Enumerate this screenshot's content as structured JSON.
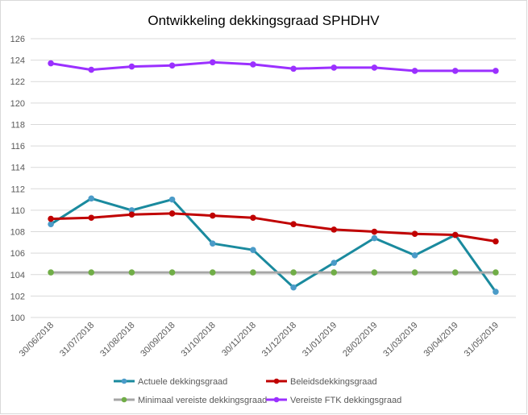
{
  "chart_data": {
    "type": "line",
    "title": "Ontwikkeling dekkingsgraad SPHDHV",
    "xlabel": "",
    "ylabel": "",
    "ylim": [
      100,
      126
    ],
    "yticks": [
      100,
      102,
      104,
      106,
      108,
      110,
      112,
      114,
      116,
      118,
      120,
      122,
      124,
      126
    ],
    "grid": true,
    "legend_position": "bottom",
    "categories": [
      "30/06/2018",
      "31/07/2018",
      "31/08/2018",
      "30/09/2018",
      "31/10/2018",
      "30/11/2018",
      "31/12/2018",
      "31/01/2019",
      "28/02/2019",
      "31/03/2019",
      "30/04/2019",
      "31/05/2019"
    ],
    "series": [
      {
        "name": "Actuele dekkingsgraad",
        "color": "#4b9bc8",
        "line_color": "#1a8a9e",
        "values": [
          108.7,
          111.1,
          110.0,
          111.0,
          106.9,
          106.3,
          102.8,
          105.1,
          107.4,
          105.8,
          107.7,
          102.4
        ]
      },
      {
        "name": "Beleidsdekkingsgraad",
        "color": "#c00000",
        "line_color": "#c00000",
        "values": [
          109.2,
          109.3,
          109.6,
          109.7,
          109.5,
          109.3,
          108.7,
          108.2,
          108.0,
          107.8,
          107.7,
          107.1
        ]
      },
      {
        "name": "Minimaal vereiste dekkingsgraad",
        "color": "#70ad47",
        "line_color": "#a6a6a6",
        "values": [
          104.2,
          104.2,
          104.2,
          104.2,
          104.2,
          104.2,
          104.2,
          104.2,
          104.2,
          104.2,
          104.2,
          104.2
        ]
      },
      {
        "name": "Vereiste FTK dekkingsgraad",
        "color": "#9b30ff",
        "line_color": "#9b30ff",
        "values": [
          123.7,
          123.1,
          123.4,
          123.5,
          123.8,
          123.6,
          123.2,
          123.3,
          123.3,
          123.0,
          123.0,
          123.0
        ]
      }
    ]
  }
}
